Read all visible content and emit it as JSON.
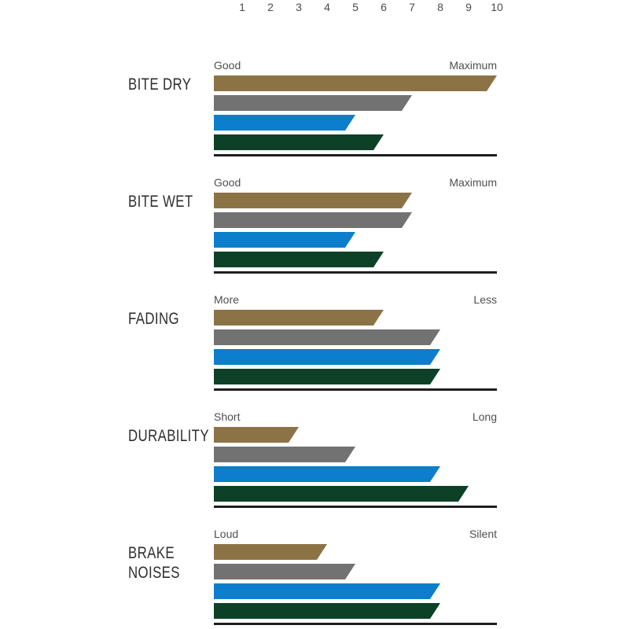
{
  "page": {
    "background": "#ffffff",
    "baseline_color": "#1e1e1e",
    "tick_text_color": "#4b4b4b",
    "sublabel_text_color": "#4f4f4f",
    "group_label_color": "#2e2e2e"
  },
  "chart_data": {
    "type": "bar",
    "orientation": "horizontal",
    "title": "",
    "legend": "none",
    "grid": false,
    "scale": {
      "ticks": [
        "1",
        "2",
        "3",
        "4",
        "5",
        "6",
        "7",
        "8",
        "9",
        "10"
      ],
      "min": 0,
      "max": 10,
      "position": "top"
    },
    "series": [
      {
        "name": "gold",
        "color": "#8c7345"
      },
      {
        "name": "gray",
        "color": "#727272"
      },
      {
        "name": "blue",
        "color": "#0d7ecb"
      },
      {
        "name": "green",
        "color": "#0d4127"
      }
    ],
    "groups": [
      {
        "label": "BITE DRY",
        "left_label": "Good",
        "right_label": "Maximum",
        "values": [
          10,
          7,
          5,
          6
        ]
      },
      {
        "label": "BITE WET",
        "left_label": "Good",
        "right_label": "Maximum",
        "values": [
          7,
          7,
          5,
          6
        ]
      },
      {
        "label": "FADING",
        "left_label": "More",
        "right_label": "Less",
        "values": [
          6,
          8,
          8,
          8
        ]
      },
      {
        "label": "DURABILITY",
        "left_label": "Short",
        "right_label": "Long",
        "values": [
          3,
          5,
          8,
          9
        ]
      },
      {
        "label": "BRAKE NOISES",
        "left_label": "Loud",
        "right_label": "Silent",
        "values": [
          4,
          5,
          8,
          8
        ]
      }
    ]
  }
}
